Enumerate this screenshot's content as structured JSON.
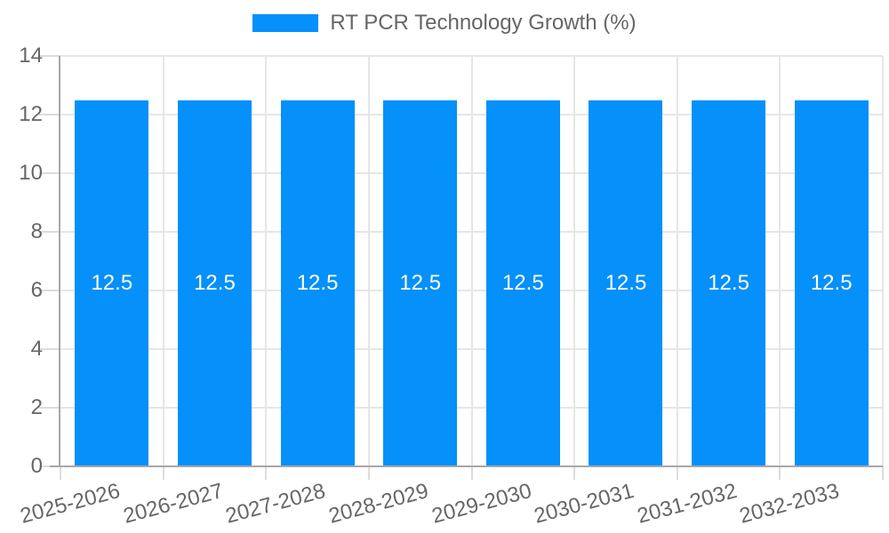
{
  "chart_data": {
    "type": "bar",
    "title": "",
    "legend_label": "RT PCR Technology Growth (%)",
    "legend_position": "top",
    "categories": [
      "2025-2026",
      "2026-2027",
      "2027-2028",
      "2028-2029",
      "2029-2030",
      "2030-2031",
      "2031-2032",
      "2032-2033"
    ],
    "series": [
      {
        "name": "RT PCR Technology Growth (%)",
        "values": [
          12.5,
          12.5,
          12.5,
          12.5,
          12.5,
          12.5,
          12.5,
          12.5
        ]
      }
    ],
    "data_labels": [
      "12.5",
      "12.5",
      "12.5",
      "12.5",
      "12.5",
      "12.5",
      "12.5",
      "12.5"
    ],
    "xlabel": "",
    "ylabel": "",
    "ylim": [
      0,
      14
    ],
    "yticks": [
      0,
      2,
      4,
      6,
      8,
      10,
      12,
      14
    ],
    "grid": true,
    "x_tick_rotation_deg": -15,
    "colors": {
      "bar": "#0590fa",
      "grid": "#e6e6e6",
      "tick_mark": "#dcdcdc",
      "axis": "#a8a8a8",
      "tick_label": "#666666",
      "data_label": "#ffffff",
      "background": "#ffffff"
    }
  }
}
